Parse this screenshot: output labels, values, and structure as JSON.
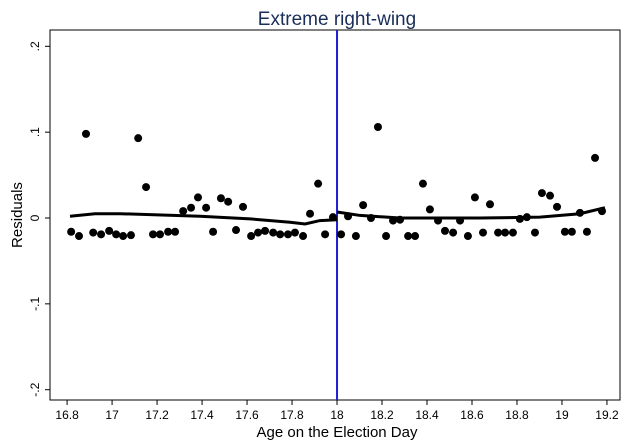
{
  "chart_data": {
    "type": "scatter",
    "title": "Extreme right-wing",
    "xlabel": "Age on the Election Day",
    "ylabel": "Residuals",
    "xlim": [
      16.724,
      19.258
    ],
    "ylim": [
      -0.212,
      0.219
    ],
    "xticks": [
      16.8,
      17,
      17.2,
      17.4,
      17.6,
      17.8,
      18,
      18.2,
      18.4,
      18.6,
      18.8,
      19,
      19.2
    ],
    "yticks": [
      {
        "value": -0.2,
        "label": "-.2"
      },
      {
        "value": -0.1,
        "label": "-.1"
      },
      0,
      {
        "value": 0.1,
        "label": ".1"
      },
      {
        "value": 0.2,
        "label": ".2"
      }
    ],
    "cutoff": 18,
    "cutoff_color": "#1f1fd0",
    "point_color": "#000000",
    "fit_color": "#000000",
    "points": {
      "x": [
        16.818,
        16.853,
        16.884,
        16.916,
        16.951,
        16.987,
        17.018,
        17.049,
        17.084,
        17.116,
        17.151,
        17.182,
        17.213,
        17.249,
        17.28,
        17.316,
        17.351,
        17.382,
        17.418,
        17.449,
        17.484,
        17.516,
        17.551,
        17.582,
        17.618,
        17.649,
        17.68,
        17.716,
        17.747,
        17.782,
        17.813,
        17.849,
        17.88,
        17.916,
        17.947,
        17.982,
        18.018,
        18.049,
        18.084,
        18.116,
        18.151,
        18.182,
        18.218,
        18.249,
        18.28,
        18.316,
        18.347,
        18.382,
        18.413,
        18.449,
        18.48,
        18.516,
        18.547,
        18.582,
        18.613,
        18.649,
        18.68,
        18.716,
        18.747,
        18.782,
        18.813,
        18.844,
        18.88,
        18.911,
        18.947,
        18.978,
        19.013,
        19.044,
        19.08,
        19.111,
        19.147,
        19.178
      ],
      "y": [
        -0.016,
        -0.021,
        0.098,
        -0.017,
        -0.019,
        -0.015,
        -0.019,
        -0.021,
        -0.02,
        0.093,
        0.036,
        -0.019,
        -0.019,
        -0.016,
        -0.016,
        0.008,
        0.012,
        0.024,
        0.012,
        -0.016,
        0.023,
        0.019,
        -0.014,
        0.013,
        -0.021,
        -0.017,
        -0.015,
        -0.017,
        -0.019,
        -0.019,
        -0.017,
        -0.021,
        0.005,
        0.04,
        -0.019,
        0.001,
        -0.019,
        0.002,
        -0.021,
        0.015,
        0,
        0.106,
        -0.021,
        -0.003,
        -0.002,
        -0.021,
        -0.021,
        0.04,
        0.01,
        -0.003,
        -0.015,
        -0.017,
        -0.003,
        -0.021,
        0.024,
        -0.017,
        0.016,
        -0.017,
        -0.017,
        -0.017,
        -0.001,
        0.001,
        -0.017,
        0.029,
        0.026,
        0.013,
        -0.016,
        -0.016,
        0.006,
        -0.016,
        0.07,
        0.008
      ]
    },
    "fits": [
      {
        "x": [
          16.813,
          16.924,
          17.036,
          17.391,
          17.613,
          17.791,
          17.858,
          17.924,
          18.0
        ],
        "y": [
          0.002,
          0.005,
          0.005,
          0.002,
          -0.001,
          -0.005,
          -0.007,
          -0.003,
          -0.002
        ]
      },
      {
        "x": [
          18.0,
          18.102,
          18.28,
          18.636,
          18.902,
          19.08,
          19.191
        ],
        "y": [
          0.007,
          0.003,
          0,
          0,
          0.001,
          0.005,
          0.012
        ]
      }
    ]
  }
}
